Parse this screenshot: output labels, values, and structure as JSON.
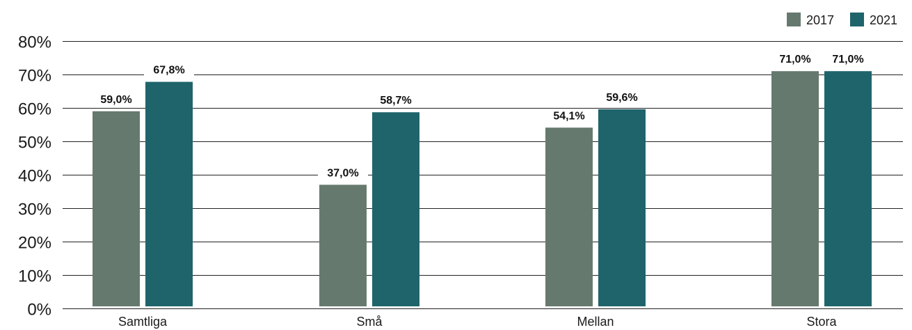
{
  "chart_data": {
    "type": "bar",
    "categories": [
      "Samtliga",
      "Små",
      "Mellan",
      "Stora"
    ],
    "series": [
      {
        "name": "2017",
        "color": "#66796e",
        "values": [
          59.0,
          37.0,
          54.1,
          71.0
        ],
        "labels": [
          "59,0%",
          "37,0%",
          "54,1%",
          "71,0%"
        ]
      },
      {
        "name": "2021",
        "color": "#1f646b",
        "values": [
          67.8,
          58.7,
          59.6,
          71.0
        ],
        "labels": [
          "67,8%",
          "58,7%",
          "59,6%",
          "71,0%"
        ]
      }
    ],
    "ylim": [
      0,
      80
    ],
    "yticks": [
      0,
      10,
      20,
      30,
      40,
      50,
      60,
      70,
      80
    ],
    "ytick_labels": [
      "0%",
      "10%",
      "20%",
      "30%",
      "40%",
      "50%",
      "60%",
      "70%",
      "80%"
    ],
    "title": "",
    "xlabel": "",
    "ylabel": "",
    "grid": true,
    "legend_position": "top-right"
  }
}
